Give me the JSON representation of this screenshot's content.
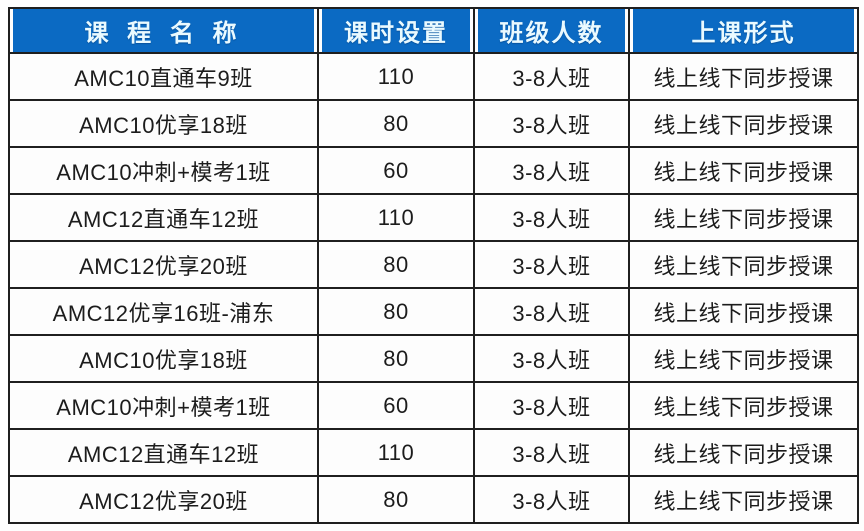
{
  "table": {
    "columns": [
      {
        "key": "course",
        "label": "课 程 名 称"
      },
      {
        "key": "hours",
        "label": "课时设置"
      },
      {
        "key": "size",
        "label": "班级人数"
      },
      {
        "key": "format",
        "label": "上课形式"
      }
    ],
    "rows": [
      {
        "course": "AMC10直通车9班",
        "hours": "110",
        "size": "3-8人班",
        "format": "线上线下同步授课"
      },
      {
        "course": "AMC10优享18班",
        "hours": "80",
        "size": "3-8人班",
        "format": "线上线下同步授课"
      },
      {
        "course": "AMC10冲刺+模考1班",
        "hours": "60",
        "size": "3-8人班",
        "format": "线上线下同步授课"
      },
      {
        "course": "AMC12直通车12班",
        "hours": "110",
        "size": "3-8人班",
        "format": "线上线下同步授课"
      },
      {
        "course": "AMC12优享20班",
        "hours": "80",
        "size": "3-8人班",
        "format": "线上线下同步授课"
      },
      {
        "course": "AMC12优享16班-浦东",
        "hours": "80",
        "size": "3-8人班",
        "format": "线上线下同步授课"
      },
      {
        "course": "AMC10优享18班",
        "hours": "80",
        "size": "3-8人班",
        "format": "线上线下同步授课"
      },
      {
        "course": "AMC10冲刺+模考1班",
        "hours": "60",
        "size": "3-8人班",
        "format": "线上线下同步授课"
      },
      {
        "course": "AMC12直通车12班",
        "hours": "110",
        "size": "3-8人班",
        "format": "线上线下同步授课"
      },
      {
        "course": "AMC12优享20班",
        "hours": "80",
        "size": "3-8人班",
        "format": "线上线下同步授课"
      }
    ],
    "colors": {
      "header_bg": "#0b6ac3",
      "header_text": "#eafaff",
      "border": "#1f1f1f",
      "cell_bg": "#fdfdfd",
      "body_text": "#1c1c1c"
    }
  },
  "chart_data": {
    "type": "table",
    "title": "",
    "columns": [
      "课程名称",
      "课时设置",
      "班级人数",
      "上课形式"
    ],
    "rows": [
      [
        "AMC10直通车9班",
        110,
        "3-8人班",
        "线上线下同步授课"
      ],
      [
        "AMC10优享18班",
        80,
        "3-8人班",
        "线上线下同步授课"
      ],
      [
        "AMC10冲刺+模考1班",
        60,
        "3-8人班",
        "线上线下同步授课"
      ],
      [
        "AMC12直通车12班",
        110,
        "3-8人班",
        "线上线下同步授课"
      ],
      [
        "AMC12优享20班",
        80,
        "3-8人班",
        "线上线下同步授课"
      ],
      [
        "AMC12优享16班-浦东",
        80,
        "3-8人班",
        "线上线下同步授课"
      ],
      [
        "AMC10优享18班",
        80,
        "3-8人班",
        "线上线下同步授课"
      ],
      [
        "AMC10冲刺+模考1班",
        60,
        "3-8人班",
        "线上线下同步授课"
      ],
      [
        "AMC12直通车12班",
        110,
        "3-8人班",
        "线上线下同步授课"
      ],
      [
        "AMC12优享20班",
        80,
        "3-8人班",
        "线上线下同步授课"
      ]
    ]
  }
}
